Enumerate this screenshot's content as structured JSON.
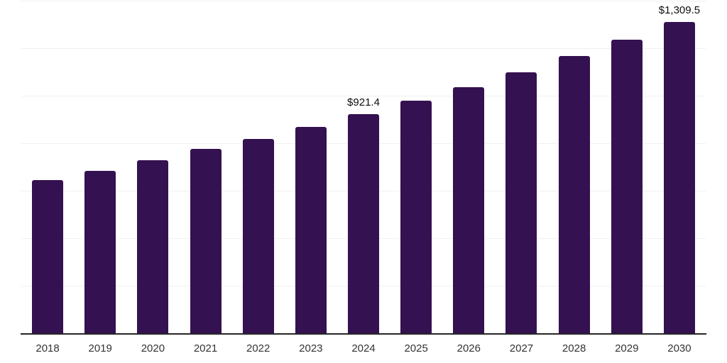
{
  "chart_data": {
    "type": "bar",
    "title": "",
    "xlabel": "",
    "ylabel": "",
    "categories": [
      "2018",
      "2019",
      "2020",
      "2021",
      "2022",
      "2023",
      "2024",
      "2025",
      "2026",
      "2027",
      "2028",
      "2029",
      "2030"
    ],
    "values": [
      645,
      684,
      729,
      776,
      818,
      869,
      921.4,
      978,
      1035,
      1100,
      1166,
      1235,
      1309.5
    ],
    "value_labels": [
      {
        "category": "2024",
        "text": "$921.4"
      },
      {
        "category": "2030",
        "text": "$1,309.5"
      }
    ],
    "ylim": [
      0,
      1400
    ],
    "gridline_step": 200,
    "grid": "horizontal-only",
    "legend": "none",
    "y_axis_tick_labels": "none",
    "colors": {
      "bar": "#341150",
      "gridline": "#f0f0f0",
      "axis_line": "#262626",
      "tick_label": "#333333",
      "annotation_text": "#0d0d0d",
      "background": "#ffffff"
    }
  }
}
